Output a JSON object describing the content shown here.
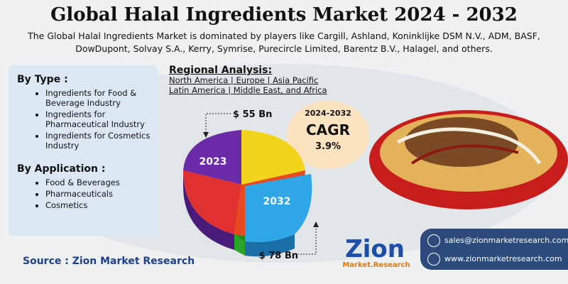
{
  "header": {
    "title": "Global Halal Ingredients Market 2024 - 2032",
    "subtitle": "The Global Halal Ingredients Market is dominated by players like Cargill, Ashland, Koninklijke DSM N.V., ADM, BASF, DowDupont, Solvay S.A., Kerry, Symrise, Purecircle Limited, Barentz B.V., Halagel, and others."
  },
  "by_type": {
    "heading": "By Type  :",
    "items": [
      "Ingredients for Food & Beverage Industry",
      "Ingredients for Pharmaceutical Industry",
      "Ingredients for Cosmetics Industry"
    ]
  },
  "by_application": {
    "heading": "By Application :",
    "items": [
      "Food & Beverages",
      "Pharmaceuticals",
      "Cosmetics"
    ]
  },
  "regional": {
    "heading": "Regional Analysis:",
    "lines": [
      "North America | Europe | Asia Pacific",
      "Latin America | Middle East, and Africa"
    ]
  },
  "market": {
    "year_start": "2023",
    "value_start": "$ 55 Bn",
    "year_end": "2032",
    "value_end": "$ 78 Bn"
  },
  "cagr": {
    "period": "2024-2032",
    "label": "CAGR",
    "value": "3.9%"
  },
  "source": "Source : Zion Market Research",
  "logo": {
    "name": "Zion",
    "sub": "Market.Research"
  },
  "contact": {
    "email": "sales@zionmarketresearch.com",
    "website": "www.zionmarketresearch.com"
  }
}
